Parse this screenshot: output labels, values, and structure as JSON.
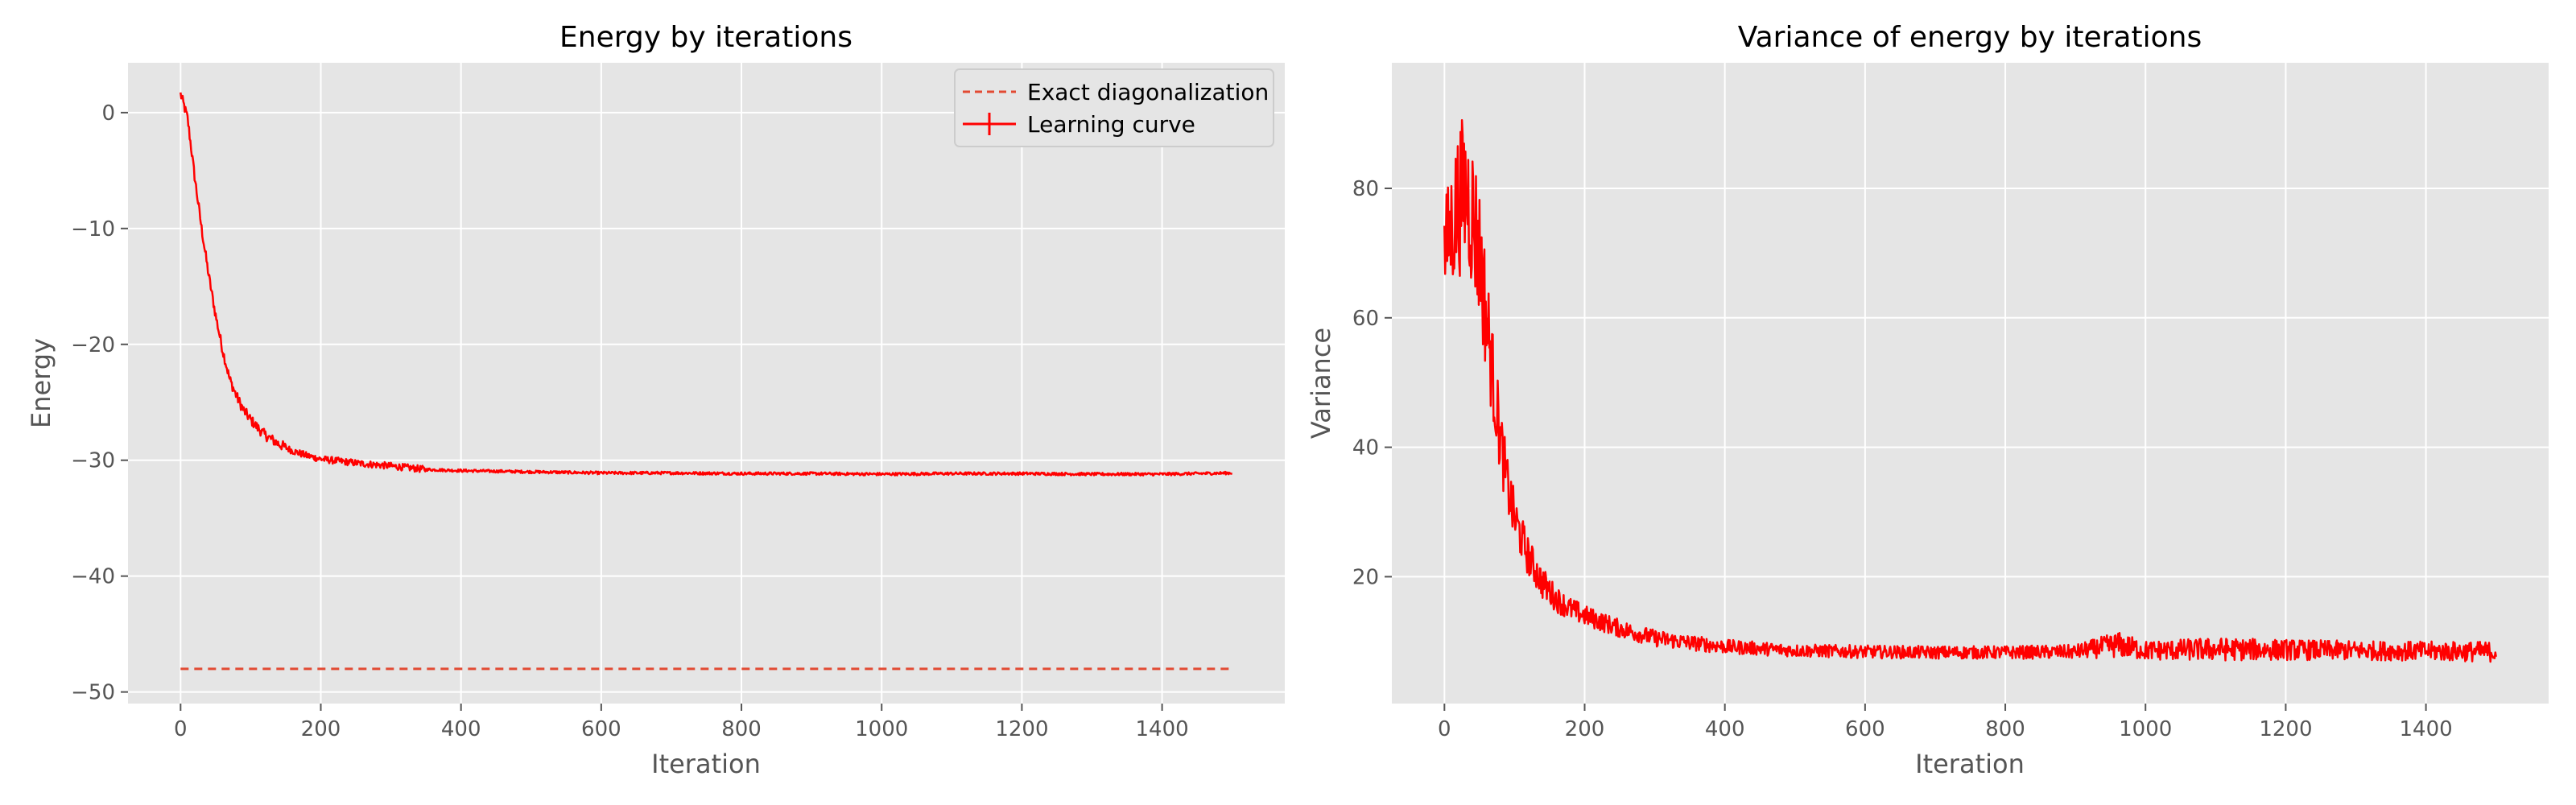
{
  "chart_data": [
    {
      "type": "line",
      "title": "Energy by iterations",
      "xlabel": "Iteration",
      "ylabel": "Energy",
      "xlim": [
        -75,
        1575
      ],
      "ylim": [
        -51,
        4.3
      ],
      "xticks": [
        0,
        200,
        400,
        600,
        800,
        1000,
        1200,
        1400
      ],
      "yticks": [
        -50,
        -40,
        -30,
        -20,
        -10,
        0
      ],
      "grid": true,
      "legend_position": "top-right",
      "series": [
        {
          "name": "Exact diagonalization",
          "style": "dashed",
          "color": "#e24a33",
          "x": [
            0,
            1500
          ],
          "y": [
            -48.0,
            -48.0
          ]
        },
        {
          "name": "Learning curve",
          "style": "solid-errorbar",
          "color": "#ff0000",
          "x": [
            0,
            3,
            10,
            20,
            30,
            40,
            50,
            60,
            70,
            80,
            90,
            100,
            110,
            120,
            140,
            160,
            180,
            200,
            230,
            260,
            300,
            350,
            400,
            500,
            600,
            700,
            800,
            900,
            1000,
            1100,
            1200,
            1300,
            1400,
            1500
          ],
          "y": [
            1.6,
            1.0,
            -0.5,
            -5.5,
            -10.0,
            -14.0,
            -17.5,
            -20.5,
            -23.0,
            -24.5,
            -25.7,
            -26.5,
            -27.2,
            -27.8,
            -28.6,
            -29.2,
            -29.6,
            -29.9,
            -30.1,
            -30.3,
            -30.5,
            -30.8,
            -30.9,
            -31.0,
            -31.1,
            -31.1,
            -31.15,
            -31.15,
            -31.2,
            -31.15,
            -31.15,
            -31.2,
            -31.2,
            -31.1
          ]
        }
      ]
    },
    {
      "type": "line",
      "title": "Variance of energy by iterations",
      "xlabel": "Iteration",
      "ylabel": "Variance",
      "xlim": [
        -75,
        1575
      ],
      "ylim": [
        0.4,
        99.4
      ],
      "xticks": [
        0,
        200,
        400,
        600,
        800,
        1000,
        1200,
        1400
      ],
      "yticks": [
        20,
        40,
        60,
        80
      ],
      "grid": true,
      "series": [
        {
          "name": "Learning curve",
          "color": "#ff0000",
          "x": [
            0,
            10,
            20,
            30,
            40,
            50,
            60,
            70,
            80,
            90,
            100,
            110,
            120,
            140,
            160,
            180,
            200,
            250,
            300,
            350,
            400,
            500,
            600,
            700,
            800,
            900,
            960,
            1000,
            1100,
            1200,
            1300,
            1400,
            1500
          ],
          "y": [
            70,
            74,
            78,
            80,
            76,
            70,
            60,
            50,
            41,
            34,
            29,
            26,
            23,
            19,
            16.5,
            15.0,
            14.0,
            12.0,
            10.5,
            9.8,
            9.2,
            8.6,
            8.4,
            8.3,
            8.3,
            8.4,
            9.5,
            8.6,
            8.8,
            8.7,
            8.6,
            8.5,
            8.4
          ],
          "spread": [
            8,
            10,
            12,
            12,
            12,
            11,
            9,
            7,
            5.5,
            4.5,
            4,
            3.5,
            3,
            2.5,
            2,
            1.8,
            1.6,
            1.4,
            1.3,
            1.2,
            1.1,
            1.0,
            1.0,
            1.0,
            1.0,
            1.1,
            2.0,
            1.5,
            1.8,
            1.6,
            1.5,
            1.5,
            1.6
          ]
        }
      ]
    }
  ]
}
